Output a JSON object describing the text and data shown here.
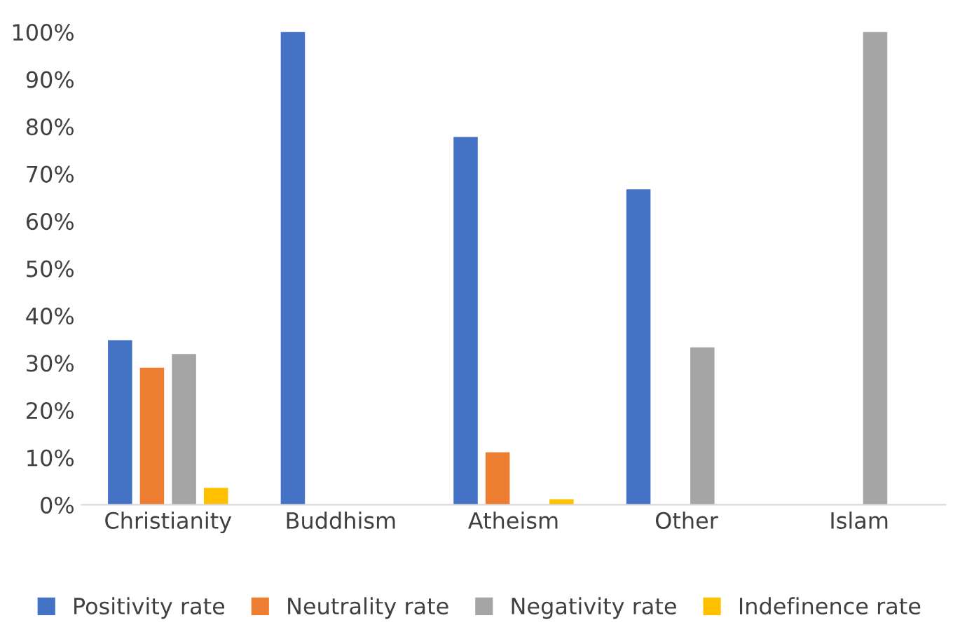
{
  "chart_data": {
    "type": "bar",
    "categories": [
      "Christianity",
      "Buddhism",
      "Atheism",
      "Other",
      "Islam"
    ],
    "series": [
      {
        "name": "Positivity rate",
        "color": "#4472c4",
        "values": [
          34.8,
          100,
          77.8,
          66.7,
          0
        ]
      },
      {
        "name": "Neutrality rate",
        "color": "#ed7d31",
        "values": [
          29,
          0,
          11.1,
          0,
          0
        ]
      },
      {
        "name": "Negativity rate",
        "color": "#a5a5a5",
        "values": [
          31.9,
          0,
          0,
          33.3,
          100
        ]
      },
      {
        "name": "Indefinence rate",
        "color": "#ffc000",
        "values": [
          3.6,
          0,
          1.2,
          0,
          0
        ]
      }
    ],
    "ylim": [
      0,
      100
    ],
    "yticks": [
      {
        "value": 0,
        "label": "0%"
      },
      {
        "value": 10,
        "label": "10%"
      },
      {
        "value": 20,
        "label": "20%"
      },
      {
        "value": 30,
        "label": "30%"
      },
      {
        "value": 40,
        "label": "40%"
      },
      {
        "value": 50,
        "label": "50%"
      },
      {
        "value": 60,
        "label": "60%"
      },
      {
        "value": 70,
        "label": "70%"
      },
      {
        "value": 80,
        "label": "80%"
      },
      {
        "value": 90,
        "label": "90%"
      },
      {
        "value": 100,
        "label": "100%"
      }
    ],
    "grid": false,
    "legend": "bottom"
  }
}
